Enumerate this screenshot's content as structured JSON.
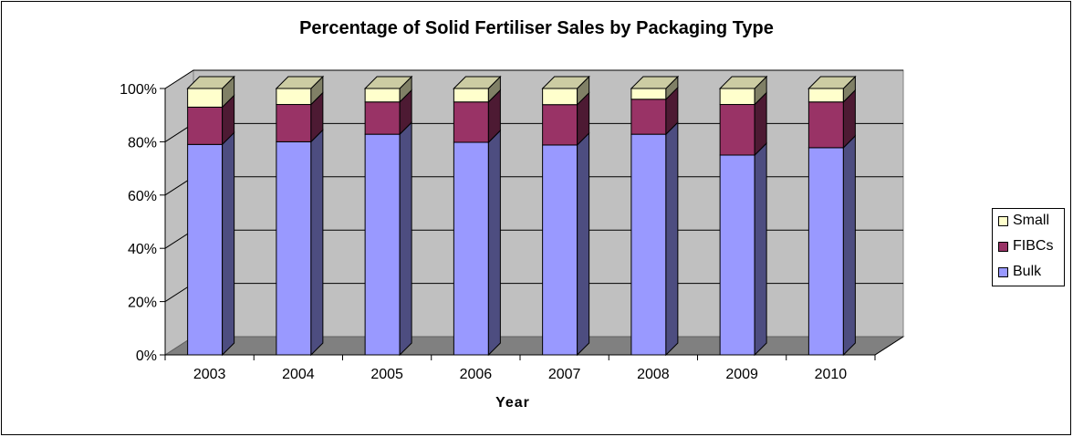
{
  "chart_data": {
    "type": "bar",
    "stacked": true,
    "percent_stacked": true,
    "three_d": true,
    "title": "Percentage of Solid Fertiliser Sales by Packaging Type",
    "xlabel": "Year",
    "ylabel": "",
    "categories": [
      "2003",
      "2004",
      "2005",
      "2006",
      "2007",
      "2008",
      "2009",
      "2010"
    ],
    "y_ticks": [
      "0%",
      "20%",
      "40%",
      "60%",
      "80%",
      "100%"
    ],
    "ylim": [
      0,
      100
    ],
    "grid": true,
    "legend_position": "right",
    "series": [
      {
        "name": "Bulk",
        "color": "#9999ff",
        "values": [
          79,
          80,
          82,
          79,
          78,
          82,
          75,
          77
        ]
      },
      {
        "name": "FIBCs",
        "color": "#993366",
        "values": [
          14,
          14,
          12,
          15,
          15,
          13,
          19,
          17
        ]
      },
      {
        "name": "Small",
        "color": "#ffffcc",
        "values": [
          7,
          6,
          5,
          5,
          6,
          4,
          6,
          5
        ]
      }
    ],
    "wall_color": "#c0c0c0",
    "floor_color": "#808080"
  }
}
